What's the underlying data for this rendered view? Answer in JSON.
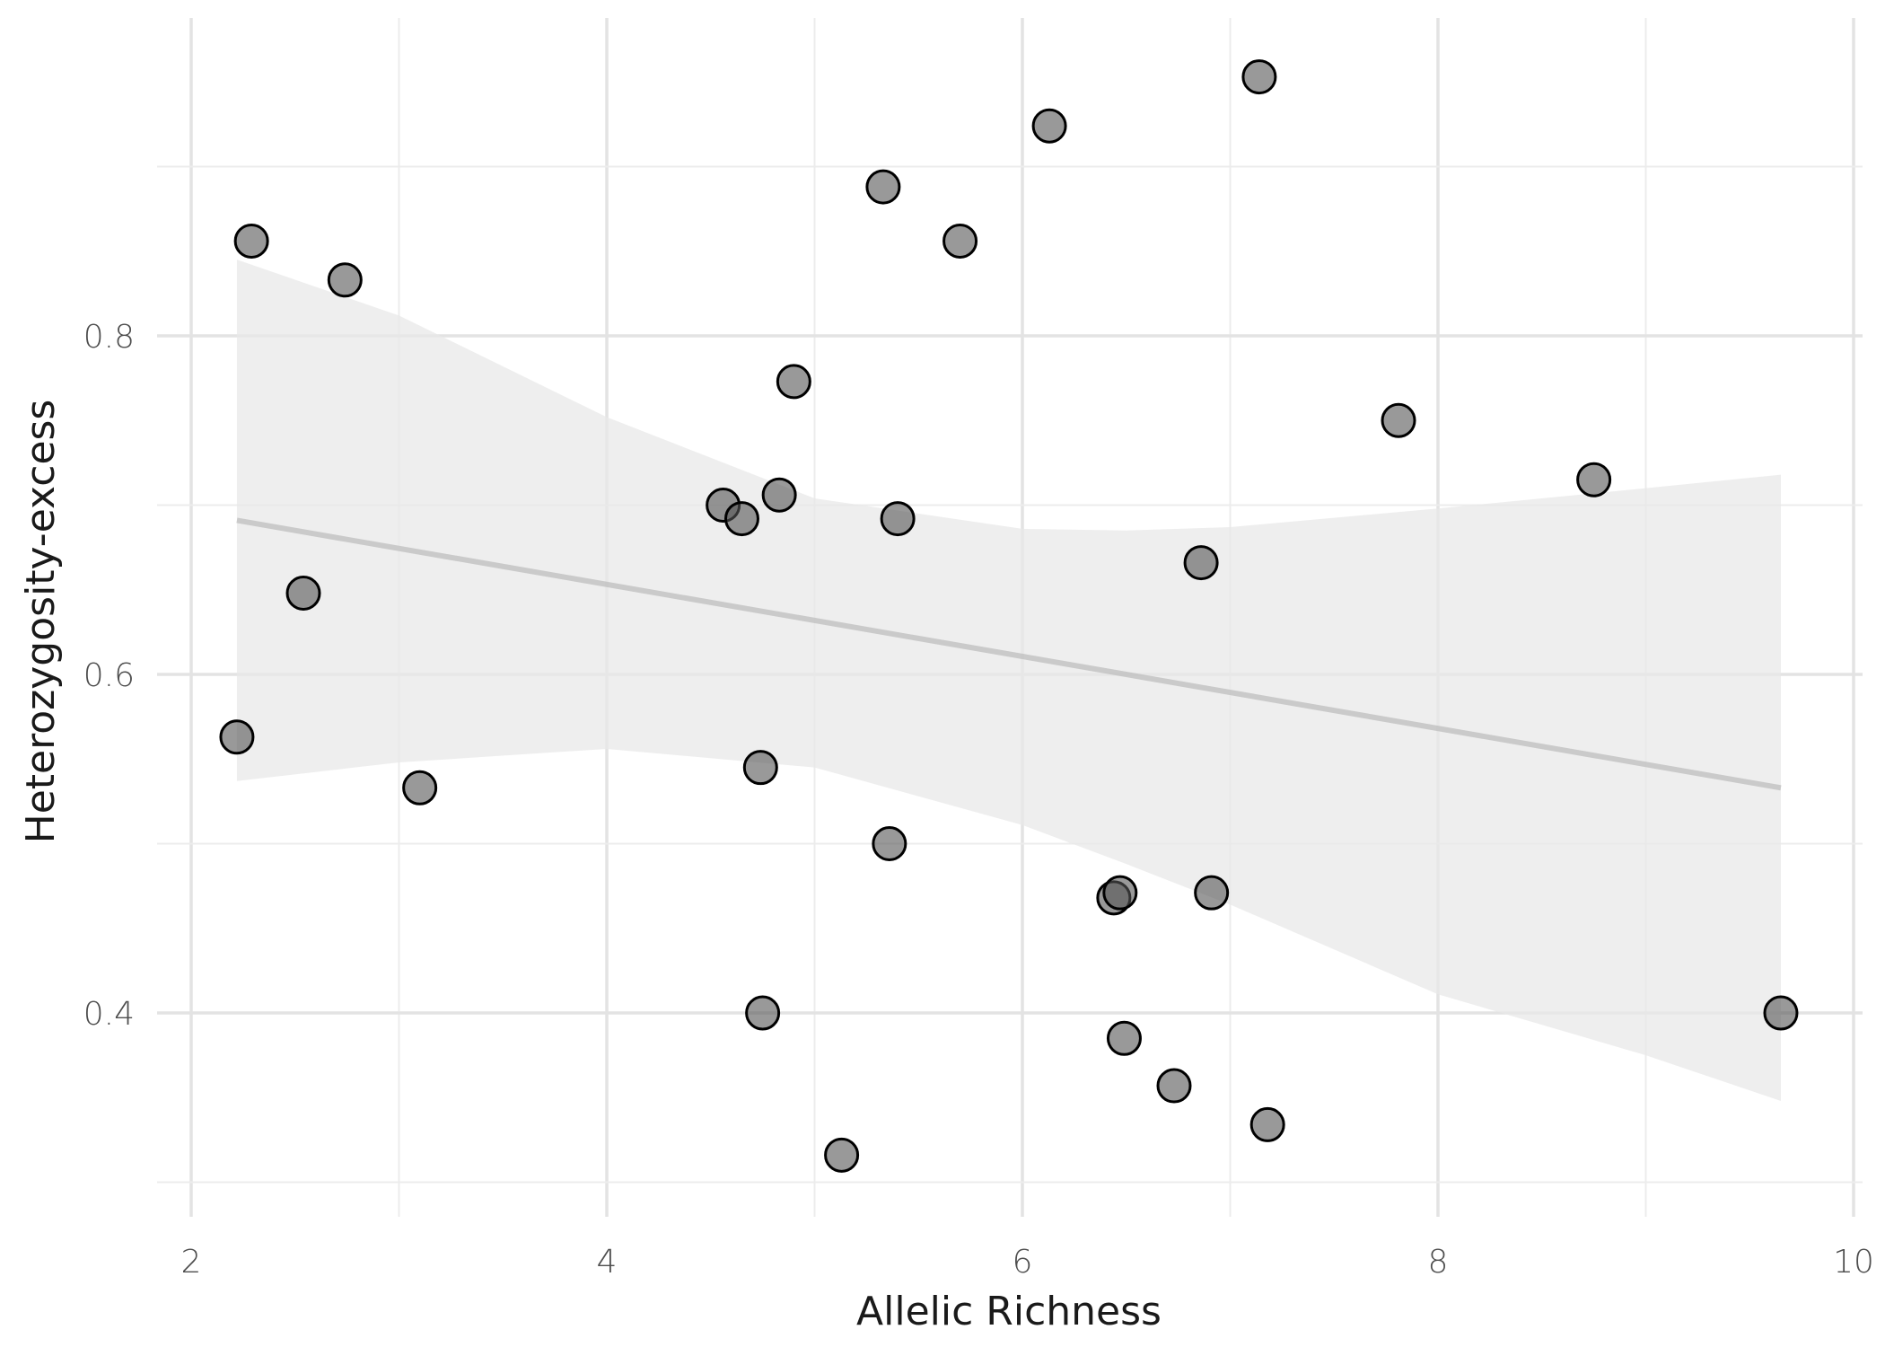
{
  "chart_data": {
    "type": "scatter",
    "xlabel": "Allelic Richness",
    "ylabel": "Heterozygosity-excess",
    "xlim": [
      2,
      10
    ],
    "ylim": [
      0.3,
      0.95
    ],
    "x_ticks": [
      2,
      4,
      6,
      8,
      10
    ],
    "y_ticks": [
      0.4,
      0.6,
      0.8
    ],
    "x_tick_labels": [
      "2",
      "4",
      "6",
      "8",
      "10"
    ],
    "y_tick_labels": [
      "0.4",
      "0.6",
      "0.8"
    ],
    "grid": true,
    "points": [
      {
        "x": 2.22,
        "y": 0.563
      },
      {
        "x": 2.29,
        "y": 0.856
      },
      {
        "x": 2.54,
        "y": 0.648
      },
      {
        "x": 2.74,
        "y": 0.833
      },
      {
        "x": 3.1,
        "y": 0.533
      },
      {
        "x": 4.56,
        "y": 0.7
      },
      {
        "x": 4.65,
        "y": 0.692
      },
      {
        "x": 4.74,
        "y": 0.545
      },
      {
        "x": 4.75,
        "y": 0.4
      },
      {
        "x": 4.83,
        "y": 0.706
      },
      {
        "x": 4.9,
        "y": 0.773
      },
      {
        "x": 5.13,
        "y": 0.316
      },
      {
        "x": 5.33,
        "y": 0.888
      },
      {
        "x": 5.36,
        "y": 0.5
      },
      {
        "x": 5.4,
        "y": 0.692
      },
      {
        "x": 5.7,
        "y": 0.856
      },
      {
        "x": 6.13,
        "y": 0.924
      },
      {
        "x": 6.44,
        "y": 0.468
      },
      {
        "x": 6.47,
        "y": 0.471
      },
      {
        "x": 6.49,
        "y": 0.385
      },
      {
        "x": 6.73,
        "y": 0.357
      },
      {
        "x": 6.86,
        "y": 0.666
      },
      {
        "x": 6.91,
        "y": 0.471
      },
      {
        "x": 7.14,
        "y": 0.953
      },
      {
        "x": 7.18,
        "y": 0.334
      },
      {
        "x": 7.81,
        "y": 0.75
      },
      {
        "x": 8.75,
        "y": 0.715
      },
      {
        "x": 9.65,
        "y": 0.4
      }
    ],
    "fit_line": {
      "x": [
        2.22,
        9.65
      ],
      "y": [
        0.691,
        0.533
      ]
    },
    "confidence_band": {
      "x": [
        2.22,
        3.0,
        4.0,
        5.0,
        6.0,
        6.5,
        7.0,
        8.0,
        9.0,
        9.65
      ],
      "upper": [
        0.845,
        0.812,
        0.752,
        0.704,
        0.686,
        0.685,
        0.687,
        0.698,
        0.71,
        0.718
      ],
      "lower": [
        0.537,
        0.548,
        0.556,
        0.545,
        0.511,
        0.488,
        0.464,
        0.411,
        0.375,
        0.348
      ]
    }
  }
}
